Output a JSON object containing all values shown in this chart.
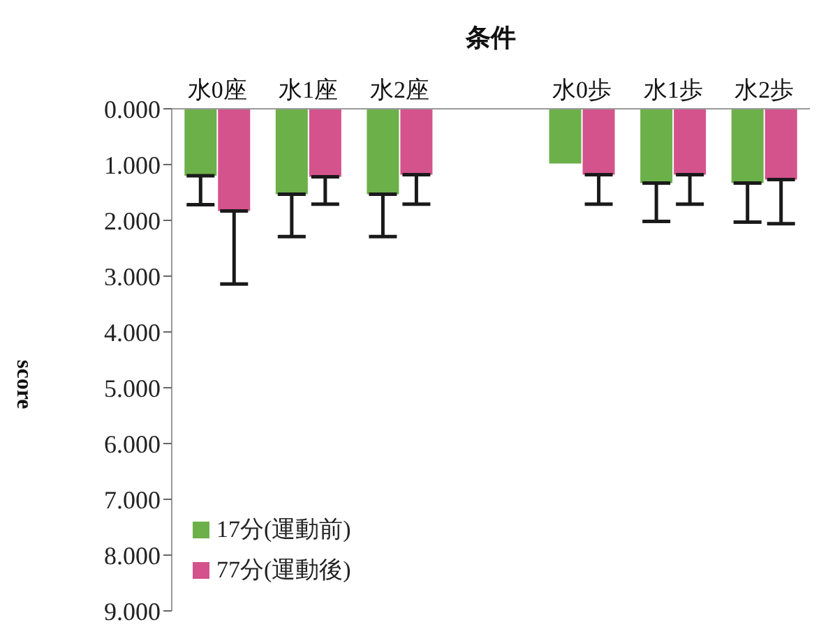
{
  "chart_data": {
    "type": "bar",
    "xlabel": "条件",
    "ylabel": "score",
    "categories": [
      "水0座",
      "水1座",
      "水2座",
      null,
      "水0歩",
      "水1歩",
      "水2歩"
    ],
    "series": [
      {
        "name": "17分(運動前)",
        "color": "#6cb04a",
        "values": [
          1.2,
          1.53,
          1.53,
          null,
          0.98,
          1.33,
          1.33
        ],
        "errors": [
          [
            1.2,
            1.72
          ],
          [
            1.53,
            2.29
          ],
          [
            1.53,
            2.29
          ],
          null,
          null,
          [
            1.33,
            2.02
          ],
          [
            1.33,
            2.03
          ]
        ]
      },
      {
        "name": "77分(運動後)",
        "color": "#d4538c",
        "values": [
          1.83,
          1.22,
          1.18,
          null,
          1.18,
          1.18,
          1.27
        ],
        "errors": [
          [
            1.83,
            3.14
          ],
          [
            1.22,
            1.71
          ],
          [
            1.18,
            1.71
          ],
          null,
          [
            1.18,
            1.71
          ],
          [
            1.18,
            1.71
          ],
          [
            1.27,
            2.06
          ]
        ]
      }
    ],
    "ylim": [
      9,
      0
    ],
    "yticks": [
      {
        "value": 0,
        "label": "0.000"
      },
      {
        "value": 1,
        "label": "1.000"
      },
      {
        "value": 2,
        "label": "2.000"
      },
      {
        "value": 3,
        "label": "3.000"
      },
      {
        "value": 4,
        "label": "4.000"
      },
      {
        "value": 5,
        "label": "5.000"
      },
      {
        "value": 6,
        "label": "6.000"
      },
      {
        "value": 7,
        "label": "7.000"
      },
      {
        "value": 8,
        "label": "8.000"
      },
      {
        "value": 9,
        "label": "9.000"
      }
    ],
    "legend": "bottom left",
    "grid": false
  }
}
